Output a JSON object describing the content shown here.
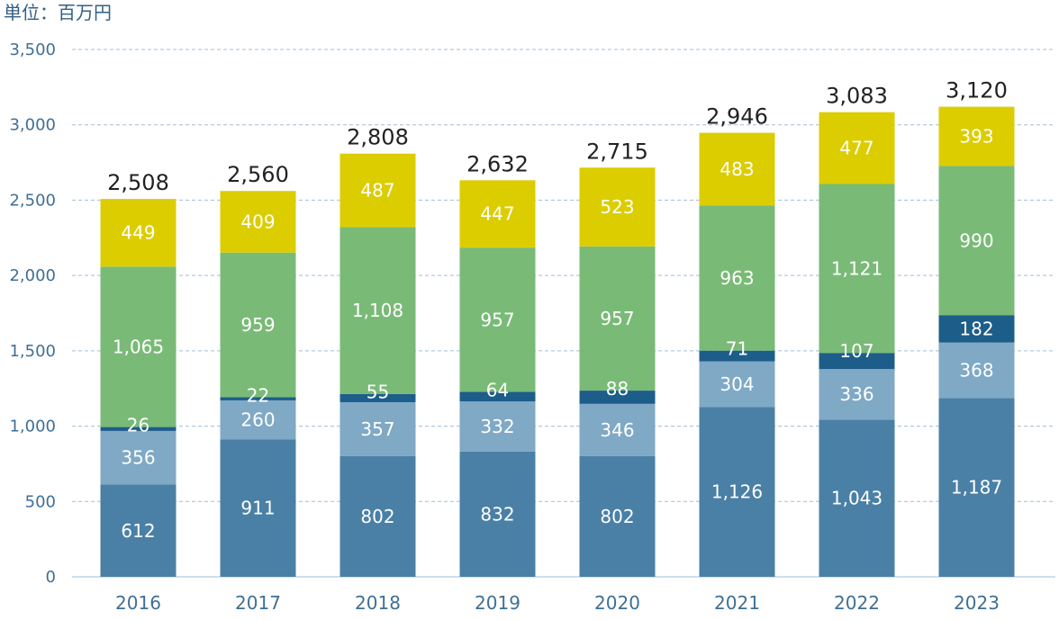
{
  "unit_label": "単位：百万円",
  "chart_data": {
    "type": "bar",
    "stacked": true,
    "categories": [
      "2016",
      "2017",
      "2018",
      "2019",
      "2020",
      "2021",
      "2022",
      "2023"
    ],
    "series": [
      {
        "values": [
          612,
          911,
          802,
          832,
          802,
          1126,
          1043,
          1187
        ],
        "labels": [
          "612",
          "911",
          "802",
          "832",
          "802",
          "1,126",
          "1,043",
          "1,187"
        ],
        "color": "#4a80a6",
        "label_color": "#ffffff"
      },
      {
        "values": [
          356,
          260,
          357,
          332,
          346,
          304,
          336,
          368
        ],
        "labels": [
          "356",
          "260",
          "357",
          "332",
          "346",
          "304",
          "336",
          "368"
        ],
        "color": "#7fa9c5",
        "label_color": "#ffffff"
      },
      {
        "values": [
          26,
          22,
          55,
          64,
          88,
          71,
          107,
          182
        ],
        "labels": [
          "26",
          "22",
          "55",
          "64",
          "88",
          "71",
          "107",
          "182"
        ],
        "color": "#1d5d8a",
        "label_color": "#ffffff"
      },
      {
        "values": [
          1065,
          959,
          1108,
          957,
          957,
          963,
          1121,
          990
        ],
        "labels": [
          "1,065",
          "959",
          "1,108",
          "957",
          "957",
          "963",
          "1,121",
          "990"
        ],
        "color": "#7aba77",
        "label_color": "#ffffff"
      },
      {
        "values": [
          449,
          409,
          487,
          447,
          523,
          483,
          477,
          393
        ],
        "labels": [
          "449",
          "409",
          "487",
          "447",
          "523",
          "483",
          "477",
          "393"
        ],
        "color": "#dccd00",
        "label_color": "#ffffff"
      }
    ],
    "totals": [
      "2,508",
      "2,560",
      "2,808",
      "2,632",
      "2,715",
      "2,946",
      "3,083",
      "3,120"
    ],
    "yticks": [
      "0",
      "500",
      "1,000",
      "1,500",
      "2,000",
      "2,500",
      "3,000",
      "3,500"
    ],
    "ylim": [
      0,
      3500
    ],
    "grid": true,
    "grid_style": "dashed",
    "legend": "none"
  }
}
